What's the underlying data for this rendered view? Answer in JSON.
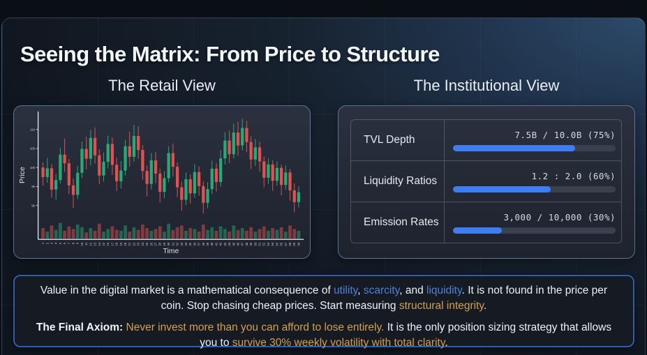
{
  "title": "Seeing the Matrix: From Price to Structure",
  "retail": {
    "heading": "The Retail View"
  },
  "institutional": {
    "heading": "The Institutional View",
    "bar_color": "#3f7df2",
    "rows": [
      {
        "label": "TVL Depth",
        "value": "7.5B / 10.0B (75%)",
        "percent": 75
      },
      {
        "label": "Liquidity Ratios",
        "value": "1.2 : 2.0 (60%)",
        "percent": 60
      },
      {
        "label": "Emission Rates",
        "value": "3,000 / 10,000 (30%)",
        "percent": 30
      }
    ]
  },
  "axiom_box": {
    "p1": {
      "t1": "Value in the digital market is a mathematical consequence of ",
      "utility": "utility",
      "c1": ", ",
      "scarcity": "scarcity",
      "c2": ", and ",
      "liquidity": "liquidity",
      "t2": ". It is not found in the price per coin. Stop chasing cheap prices. Start measuring ",
      "hi": "structural integrity",
      "t3": "."
    },
    "p2": {
      "b": "The Final Axiom:",
      "a1": " Never invest more than you can afford to lose entirely.",
      "t1": " It is the only position sizing strategy that allows you to ",
      "a2": "survive 30% weekly volatility with total clarity",
      "t2": "."
    }
  },
  "chart_data": {
    "type": "candlestick",
    "title": "",
    "xlabel": "Time",
    "ylabel": "Price",
    "ylim": [
      86,
      114
    ],
    "y_ticks": [
      90,
      95,
      100,
      105,
      110
    ],
    "up_color": "#2aa876",
    "down_color": "#e05252",
    "x": [
      "1",
      "2",
      "3",
      "4",
      "5",
      "6",
      "7",
      "8",
      "9",
      "10",
      "11",
      "12",
      "13",
      "14",
      "15",
      "16",
      "17",
      "18",
      "19",
      "20",
      "21",
      "22",
      "23",
      "24",
      "25",
      "26",
      "27",
      "28",
      "29",
      "30",
      "31",
      "32",
      "33",
      "34",
      "35",
      "36",
      "37",
      "38",
      "39",
      "40",
      "41",
      "42",
      "43",
      "44",
      "45",
      "46",
      "47",
      "48",
      "49",
      "50",
      "51",
      "52",
      "53",
      "54",
      "55",
      "56",
      "57",
      "58",
      "59",
      "60"
    ],
    "candles_format": [
      "open",
      "high",
      "low",
      "close",
      "volume"
    ],
    "candles": [
      [
        100.0,
        101.3,
        95.2,
        97.5,
        12
      ],
      [
        97.5,
        102.5,
        96.0,
        99.8,
        8
      ],
      [
        99.8,
        100.9,
        92.1,
        94.2,
        15
      ],
      [
        94.2,
        98.3,
        91.5,
        96.7,
        10
      ],
      [
        96.7,
        105.2,
        95.8,
        103.4,
        18
      ],
      [
        103.4,
        107.6,
        98.9,
        101.1,
        9
      ],
      [
        101.1,
        102.2,
        93.0,
        95.3,
        14
      ],
      [
        95.3,
        97.1,
        89.4,
        92.8,
        11
      ],
      [
        92.8,
        100.4,
        91.7,
        98.6,
        16
      ],
      [
        98.6,
        106.8,
        97.2,
        104.9,
        13
      ],
      [
        104.9,
        108.1,
        99.5,
        102.3,
        7
      ],
      [
        102.3,
        109.9,
        100.6,
        107.8,
        12
      ],
      [
        107.8,
        110.5,
        101.0,
        103.2,
        9
      ],
      [
        103.2,
        104.8,
        95.6,
        97.9,
        17
      ],
      [
        97.9,
        103.9,
        96.3,
        101.5,
        8
      ],
      [
        101.5,
        108.4,
        99.8,
        106.2,
        11
      ],
      [
        106.2,
        107.9,
        98.1,
        100.7,
        14
      ],
      [
        100.7,
        102.6,
        93.8,
        96.4,
        10
      ],
      [
        96.4,
        101.7,
        94.5,
        99.2,
        9
      ],
      [
        99.2,
        107.3,
        97.9,
        105.6,
        15
      ],
      [
        105.6,
        109.4,
        100.2,
        102.8,
        8
      ],
      [
        102.8,
        111.2,
        101.5,
        108.3,
        13
      ],
      [
        108.3,
        110.8,
        102.3,
        104.6,
        10
      ],
      [
        104.6,
        105.9,
        96.8,
        99.1,
        16
      ],
      [
        99.1,
        100.6,
        92.4,
        95.7,
        12
      ],
      [
        95.7,
        103.8,
        94.2,
        101.9,
        9
      ],
      [
        101.9,
        104.1,
        95.9,
        98.4,
        11
      ],
      [
        98.4,
        99.7,
        90.8,
        93.6,
        14
      ],
      [
        93.6,
        99.0,
        91.9,
        97.2,
        8
      ],
      [
        97.2,
        105.6,
        96.1,
        103.8,
        17
      ],
      [
        103.8,
        106.3,
        97.6,
        100.2,
        10
      ],
      [
        100.2,
        101.4,
        92.2,
        94.8,
        13
      ],
      [
        94.8,
        96.3,
        88.6,
        91.5,
        15
      ],
      [
        91.5,
        98.7,
        90.1,
        96.9,
        9
      ],
      [
        96.9,
        98.2,
        90.5,
        93.2,
        12
      ],
      [
        93.2,
        100.9,
        92.0,
        98.8,
        11
      ],
      [
        98.8,
        100.3,
        92.6,
        95.1,
        8
      ],
      [
        95.1,
        96.4,
        87.9,
        90.7,
        16
      ],
      [
        90.7,
        96.1,
        89.2,
        94.3,
        10
      ],
      [
        94.3,
        101.8,
        93.0,
        99.7,
        13
      ],
      [
        99.7,
        101.2,
        93.7,
        96.2,
        9
      ],
      [
        96.2,
        104.6,
        95.0,
        102.4,
        14
      ],
      [
        102.4,
        109.3,
        100.8,
        107.1,
        11
      ],
      [
        107.1,
        109.8,
        101.2,
        103.5,
        8
      ],
      [
        103.5,
        111.6,
        102.4,
        109.2,
        15
      ],
      [
        109.2,
        112.0,
        103.1,
        105.8,
        10
      ],
      [
        105.8,
        112.8,
        104.5,
        110.4,
        12
      ],
      [
        110.4,
        112.3,
        104.0,
        106.7,
        9
      ],
      [
        106.7,
        108.2,
        99.6,
        102.1,
        13
      ],
      [
        102.1,
        107.5,
        100.4,
        105.3,
        8
      ],
      [
        105.3,
        106.8,
        98.9,
        101.6,
        11
      ],
      [
        101.6,
        102.9,
        94.8,
        97.3,
        14
      ],
      [
        97.3,
        102.4,
        95.7,
        100.8,
        9
      ],
      [
        100.8,
        101.9,
        93.9,
        96.5,
        12
      ],
      [
        96.5,
        101.6,
        95.2,
        99.9,
        10
      ],
      [
        99.9,
        100.8,
        92.7,
        95.4,
        13
      ],
      [
        95.4,
        100.5,
        94.1,
        98.7,
        8
      ],
      [
        98.7,
        99.6,
        91.3,
        94.0,
        15
      ],
      [
        94.0,
        95.8,
        88.2,
        90.9,
        11
      ],
      [
        90.9,
        95.1,
        89.5,
        93.5,
        9
      ]
    ]
  }
}
